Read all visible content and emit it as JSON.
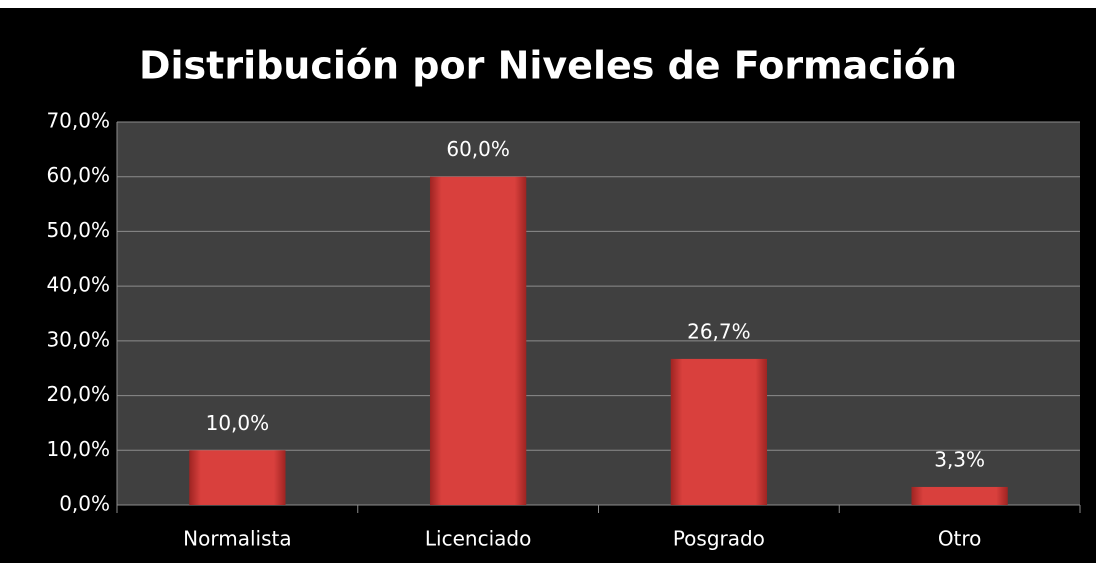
{
  "chart_data": {
    "type": "bar",
    "title": "Distribución por Niveles de Formación",
    "categories": [
      "Normalista",
      "Licenciado",
      "Posgrado",
      "Otro"
    ],
    "values": [
      10.0,
      60.0,
      26.7,
      3.3
    ],
    "value_labels": [
      "10,0%",
      "60,0%",
      "26,7%",
      "3,3%"
    ],
    "color": "#d9403d",
    "ylim": [
      0,
      70
    ],
    "yticks": [
      {
        "value": 0,
        "label": "0,0%"
      },
      {
        "value": 10,
        "label": "10,0%"
      },
      {
        "value": 20,
        "label": "20,0%"
      },
      {
        "value": 30,
        "label": "30,0%"
      },
      {
        "value": 40,
        "label": "40,0%"
      },
      {
        "value": 50,
        "label": "50,0%"
      },
      {
        "value": 60,
        "label": "60,0%"
      },
      {
        "value": 70,
        "label": "70,0%"
      }
    ],
    "grid": true
  }
}
